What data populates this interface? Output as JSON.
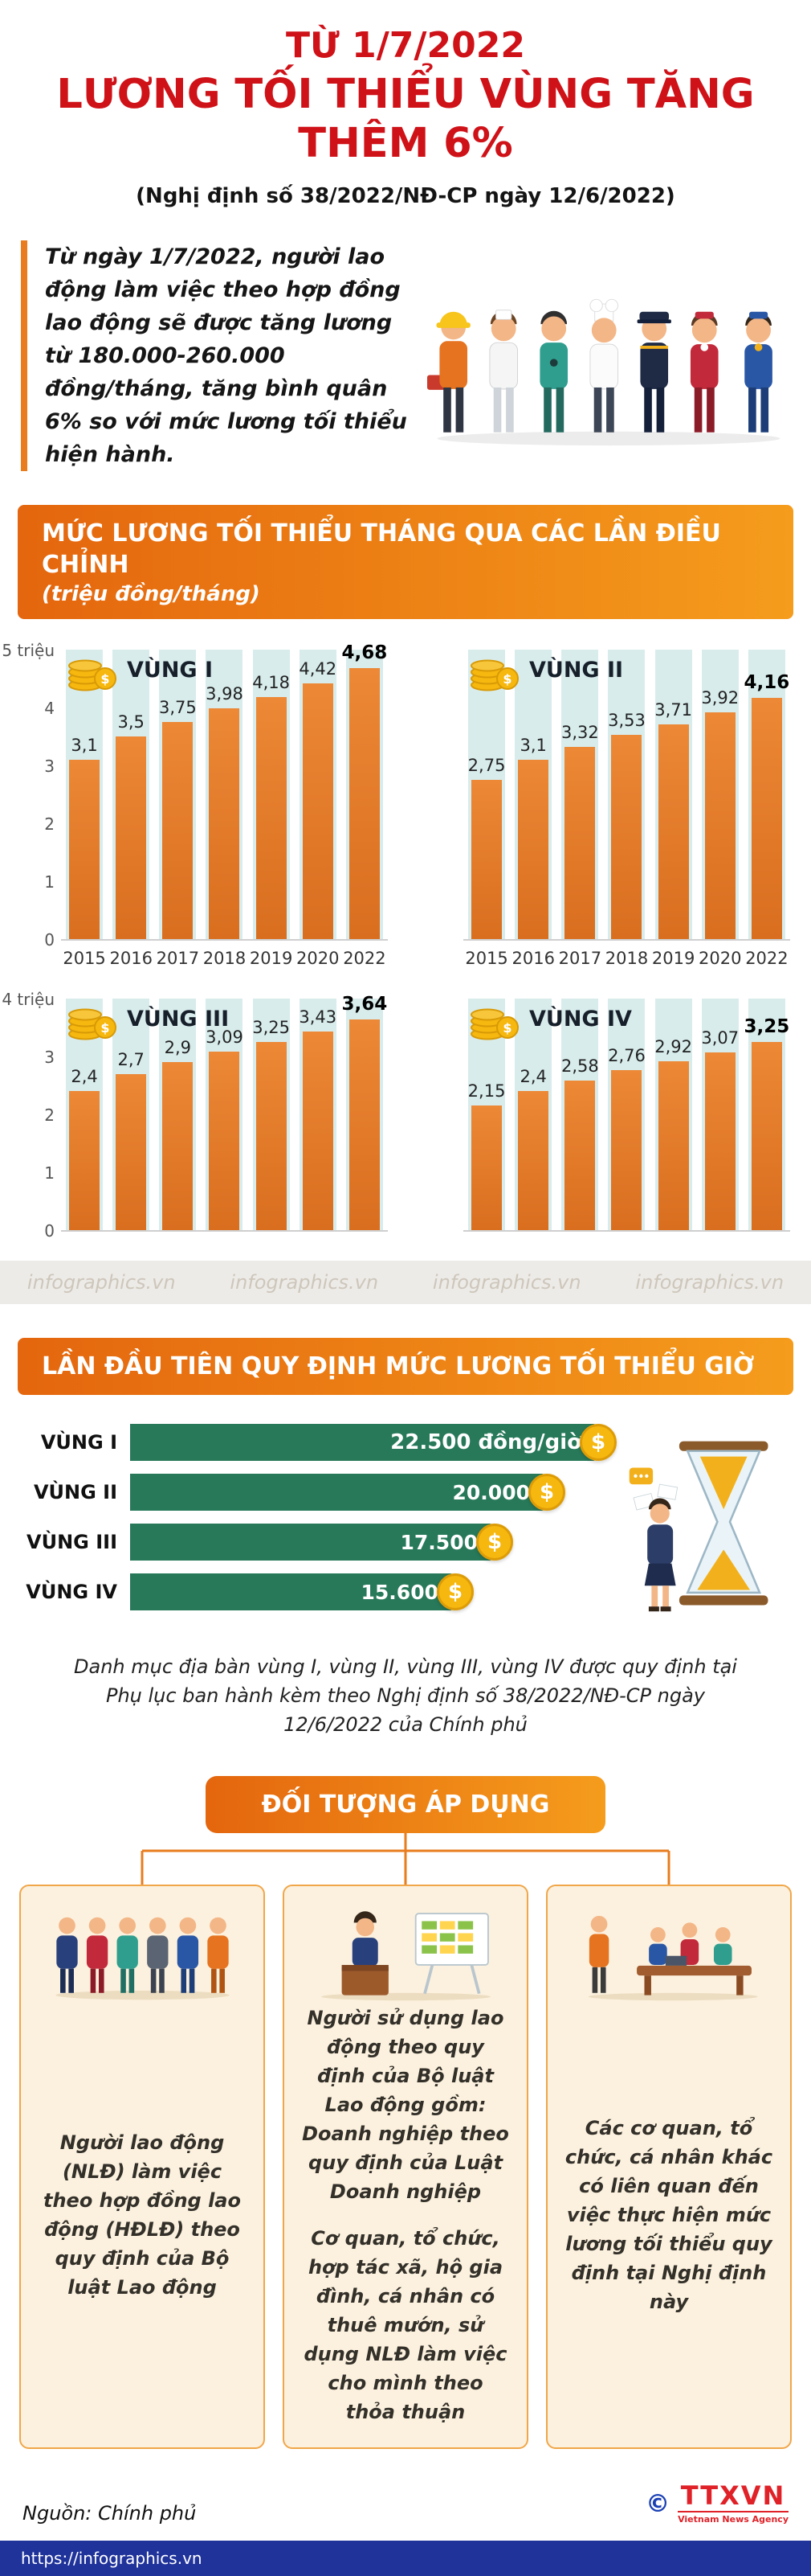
{
  "header": {
    "line1": "TỪ 1/7/2022",
    "line2": "LƯƠNG TỐI THIỂU VÙNG TĂNG THÊM 6%",
    "subtitle": "(Nghị định số 38/2022/NĐ-CP ngày 12/6/2022)"
  },
  "intro": {
    "text": "Từ ngày 1/7/2022, người lao động làm việc theo hợp đồng lao động sẽ được tăng lương từ 180.000-260.000 đồng/tháng, tăng bình quân 6% so với mức lương tối thiểu hiện hành."
  },
  "section_monthly": {
    "title": "MỨC LƯƠNG TỐI THIỂU THÁNG QUA CÁC LẦN ĐIỀU CHỈNH",
    "unit": "(triệu đồng/tháng)"
  },
  "section_hourly": {
    "title": "LẦN ĐẦU TIÊN QUY ĐỊNH MỨC LƯƠNG TỐI THIỂU GIỜ",
    "note": "Danh mục địa bàn vùng I, vùng II, vùng III, vùng IV được quy định tại Phụ lục ban hành kèm theo Nghị định số 38/2022/NĐ-CP ngày 12/6/2022 của Chính phủ"
  },
  "section_subjects": {
    "title": "ĐỐI TƯỢNG ÁP DỤNG",
    "cards": [
      {
        "text": "Người lao động (NLĐ) làm việc theo hợp đồng lao động (HĐLĐ) theo quy định của Bộ luật Lao động"
      },
      {
        "text1": "Người sử dụng lao động theo quy định của Bộ luật Lao động gồm: Doanh nghiệp theo quy định của Luật Doanh nghiệp",
        "text2": "Cơ quan, tổ chức, hợp tác xã, hộ gia đình, cá nhân có thuê mướn, sử dụng NLĐ làm việc cho mình theo thỏa thuận"
      },
      {
        "text": "Các cơ quan, tổ chức, cá nhân khác có liên quan đến việc thực hiện mức lương tối thiểu quy định tại Nghị định này"
      }
    ]
  },
  "chart_data": [
    {
      "type": "bar",
      "title": "VÙNG I",
      "categories": [
        "2015",
        "2016",
        "2017",
        "2018",
        "2019",
        "2020",
        "2022"
      ],
      "values": [
        3.1,
        3.5,
        3.75,
        3.98,
        4.18,
        4.42,
        4.68
      ],
      "labels": [
        "3,1",
        "3,5",
        "3,75",
        "3,98",
        "4,18",
        "4,42",
        "4,68"
      ],
      "ylim": [
        0,
        5
      ],
      "yticks": [
        "5 triệu",
        "4",
        "3",
        "2",
        "1",
        "0"
      ],
      "ylabel": "triệu đồng/tháng"
    },
    {
      "type": "bar",
      "title": "VÙNG II",
      "categories": [
        "2015",
        "2016",
        "2017",
        "2018",
        "2019",
        "2020",
        "2022"
      ],
      "values": [
        2.75,
        3.1,
        3.32,
        3.53,
        3.71,
        3.92,
        4.16
      ],
      "labels": [
        "2,75",
        "3,1",
        "3,32",
        "3,53",
        "3,71",
        "3,92",
        "4,16"
      ],
      "ylim": [
        0,
        5
      ],
      "yticks": [],
      "ylabel": "triệu đồng/tháng"
    },
    {
      "type": "bar",
      "title": "VÙNG III",
      "categories": [
        "2015",
        "2016",
        "2017",
        "2018",
        "2019",
        "2020",
        "2022"
      ],
      "values": [
        2.4,
        2.7,
        2.9,
        3.09,
        3.25,
        3.43,
        3.64
      ],
      "labels": [
        "2,4",
        "2,7",
        "2,9",
        "3,09",
        "3,25",
        "3,43",
        "3,64"
      ],
      "ylim": [
        0,
        4
      ],
      "yticks": [
        "4 triệu",
        "3",
        "2",
        "1",
        "0"
      ],
      "ylabel": "triệu đồng/tháng"
    },
    {
      "type": "bar",
      "title": "VÙNG IV",
      "categories": [
        "2015",
        "2016",
        "2017",
        "2018",
        "2019",
        "2020",
        "2022"
      ],
      "values": [
        2.15,
        2.4,
        2.58,
        2.76,
        2.92,
        3.07,
        3.25
      ],
      "labels": [
        "2,15",
        "2,4",
        "2,58",
        "2,76",
        "2,92",
        "3,07",
        "3,25"
      ],
      "ylim": [
        0,
        4
      ],
      "yticks": [],
      "ylabel": "triệu đồng/tháng"
    },
    {
      "type": "bar",
      "orientation": "horizontal",
      "title": "LẦN ĐẦU TIÊN QUY ĐỊNH MỨC LƯƠNG TỐI THIỂU GIỜ",
      "categories": [
        "VÙNG I",
        "VÙNG II",
        "VÙNG III",
        "VÙNG IV"
      ],
      "values": [
        22500,
        20000,
        17500,
        15600
      ],
      "labels": [
        "22.500 đồng/giờ",
        "20.000",
        "17.500",
        "15.600"
      ],
      "unit": "đồng/giờ"
    }
  ],
  "watermark": "infographics.vn",
  "footer": {
    "source": "Nguồn: Chính phủ",
    "url": "https://infographics.vn",
    "copyright": "©",
    "agency": "TTXVN",
    "agency_sub": "Vietnam News Agency"
  },
  "colors": {
    "heading_red": "#cf1118",
    "banner_orange": "#e87c1e",
    "bar_orange": "#dd7529",
    "stripe_teal": "#d8ecec",
    "hourly_green": "#27795a",
    "coin_gold": "#f6b70f",
    "card_bg": "#fcf1de",
    "card_border": "#f0a649",
    "footer_blue": "#20339b"
  }
}
